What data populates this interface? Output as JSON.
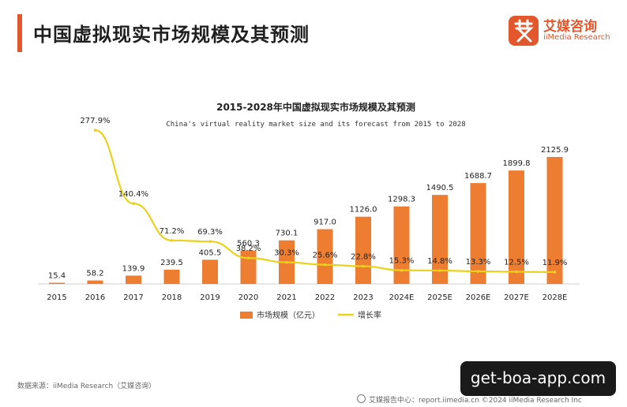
{
  "header": {
    "title": "中国虚拟现实市场规模及其预测",
    "brand_name": "艾媒咨询",
    "brand_sub": "iiMedia Research",
    "brand_color": "#e2572b"
  },
  "chart_data": {
    "type": "bar",
    "title": "2015-2028年中国虚拟现实市场规模及其预测",
    "subtitle": "China's virtual reality market size and its forecast from 2015 to 2028",
    "categories": [
      "2015",
      "2016",
      "2017",
      "2018",
      "2019",
      "2020",
      "2021",
      "2022",
      "2023",
      "2024E",
      "2025E",
      "2026E",
      "2027E",
      "2028E"
    ],
    "series": [
      {
        "name": "市场规模（亿元）",
        "type": "bar",
        "color": "#ed7d31",
        "values": [
          15.4,
          58.2,
          139.9,
          239.5,
          405.5,
          560.3,
          730.1,
          917.0,
          1126.0,
          1298.3,
          1490.5,
          1688.7,
          1899.8,
          2125.9
        ],
        "labels": [
          "15.4",
          "58.2",
          "139.9",
          "239.5",
          "405.5",
          "560.3",
          "730.1",
          "917.0",
          "1126.0",
          "1298.3",
          "1490.5",
          "1688.7",
          "1899.8",
          "2125.9"
        ]
      },
      {
        "name": "增长率",
        "type": "line",
        "color": "#e8d21c",
        "values": [
          null,
          277.9,
          140.4,
          71.2,
          69.3,
          38.2,
          30.3,
          25.6,
          22.8,
          15.3,
          14.8,
          13.3,
          12.5,
          11.9
        ],
        "labels": [
          "",
          "277.9%",
          "140.4%",
          "71.2%",
          "69.3%",
          "38.2%",
          "30.3%",
          "25.6%",
          "22.8%",
          "15.3%",
          "14.8%",
          "13.3%",
          "12.5%",
          "11.9%"
        ]
      }
    ],
    "legend_position": "bottom",
    "grid": false
  },
  "footer": {
    "source": "数据来源：iiMedia Research（艾媒咨询）",
    "site": "艾媒报告中心：report.iimedia.cn   ©2024   iiMedia Research  Inc"
  },
  "watermark": {
    "text": "get-boa-app.com"
  }
}
